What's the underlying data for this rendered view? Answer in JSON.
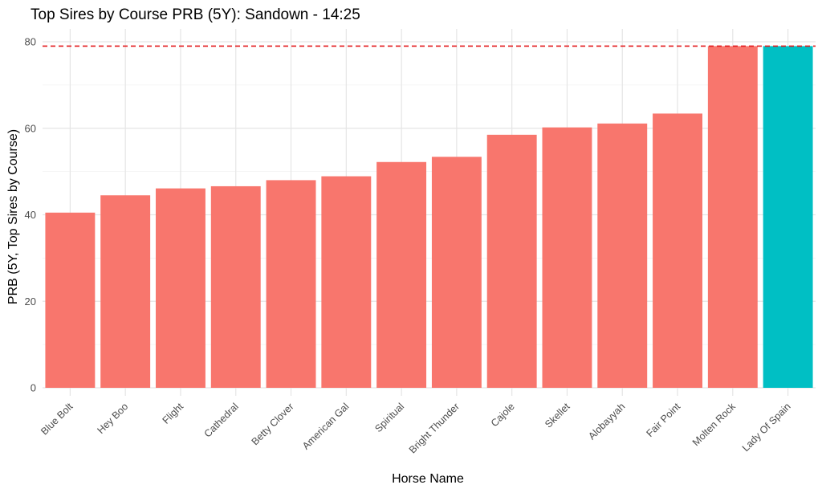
{
  "chart_data": {
    "type": "bar",
    "title": "Top Sires by Course PRB (5Y): Sandown - 14:25",
    "xlabel": "Horse Name",
    "ylabel": "PRB (5Y, Top Sires by Course)",
    "categories": [
      "Blue Bolt",
      "Hey Boo",
      "Flight",
      "Cathedral",
      "Betty Clover",
      "American Gal",
      "Spiritual",
      "Bright Thunder",
      "Cajole",
      "Skellet",
      "Alobayyah",
      "Fair Point",
      "Molten Rock",
      "Lady Of Spain"
    ],
    "values": [
      40.5,
      44.5,
      46.1,
      46.6,
      48.0,
      48.9,
      52.2,
      53.4,
      58.5,
      60.2,
      61.1,
      63.4,
      79.0,
      79.0
    ],
    "highlight": [
      false,
      false,
      false,
      false,
      false,
      false,
      false,
      false,
      false,
      false,
      false,
      false,
      false,
      true
    ],
    "yticks": [
      0,
      20,
      40,
      60,
      80
    ],
    "ylim": [
      0,
      82
    ],
    "reference_line": {
      "y": 79,
      "style": "dashed",
      "color": "#e41a1c"
    },
    "colors": {
      "default": "#f8766d",
      "highlight": "#00bfc4"
    },
    "grid": true,
    "legend": "none"
  }
}
